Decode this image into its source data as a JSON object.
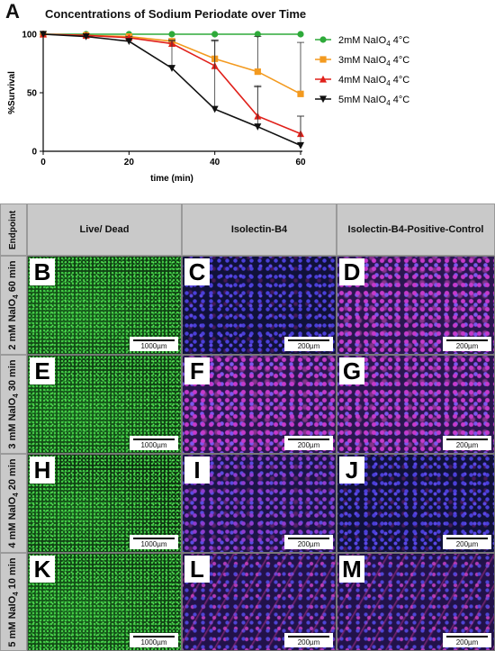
{
  "panel_a": {
    "letter": "A",
    "title": "Concentrations of Sodium Periodate over Time"
  },
  "chart_data": {
    "type": "line",
    "title": "Concentrations of Sodium Periodate over Time",
    "xlabel": "time (min)",
    "ylabel": "%Survival",
    "x": [
      0,
      10,
      20,
      30,
      40,
      50,
      60
    ],
    "xlim": [
      0,
      60
    ],
    "ylim": [
      0,
      100
    ],
    "xticks": [
      0,
      20,
      40,
      60
    ],
    "yticks": [
      0,
      50,
      100
    ],
    "grid": false,
    "legend_position": "right",
    "series": [
      {
        "name": "2mM NaIO4 4°C",
        "legend_prefix": "2mM NaIO",
        "legend_sub": "4",
        "legend_suffix": " 4°C",
        "color": "#2eaa3a",
        "marker": "circle",
        "values": [
          100,
          100,
          100,
          100,
          100,
          100,
          100
        ],
        "err_up": [
          0,
          0,
          0,
          0,
          0,
          0,
          0
        ]
      },
      {
        "name": "3mM NaIO4 4°C",
        "legend_prefix": "3mM NaIO",
        "legend_sub": "4",
        "legend_suffix": " 4°C",
        "color": "#f39a1f",
        "marker": "square",
        "values": [
          100,
          99,
          98,
          94,
          79,
          68,
          49
        ],
        "err_up": [
          0,
          0,
          1,
          2,
          16,
          30,
          44
        ]
      },
      {
        "name": "4mM NaIO4 4°C",
        "legend_prefix": "4mM NaIO",
        "legend_sub": "4",
        "legend_suffix": " 4°C",
        "color": "#e0201a",
        "marker": "triangle-up",
        "values": [
          100,
          99,
          97,
          92,
          73,
          30,
          15
        ],
        "err_up": [
          0,
          0,
          1,
          3,
          22,
          26,
          15
        ]
      },
      {
        "name": "5mM NaIO4 4°C",
        "legend_prefix": "5mM NaIO",
        "legend_sub": "4",
        "legend_suffix": " 4°C",
        "color": "#111111",
        "marker": "triangle-down",
        "values": [
          100,
          98,
          94,
          71,
          36,
          21,
          5
        ],
        "err_up": [
          0,
          0,
          2,
          23,
          58,
          34,
          25
        ]
      }
    ]
  },
  "grid": {
    "corner_label": "Endpoint",
    "col_headers": [
      "Live/ Dead",
      "Isolectin-B4",
      "Isolectin-B4-Positive-Control"
    ],
    "rows": [
      {
        "label_pre": "2 mM NaIO",
        "label_sub": "4",
        "label_post": " 60 min",
        "cells": [
          {
            "letter": "B",
            "scale": "1000µm",
            "tex": "tex-green"
          },
          {
            "letter": "C",
            "scale": "200µm",
            "tex": "tex-blue"
          },
          {
            "letter": "D",
            "scale": "200µm",
            "tex": "tex-pink"
          }
        ]
      },
      {
        "label_pre": "3 mM NaIO",
        "label_sub": "4",
        "label_post": " 30 min",
        "cells": [
          {
            "letter": "E",
            "scale": "1000µm",
            "tex": "tex-green"
          },
          {
            "letter": "F",
            "scale": "200µm",
            "tex": "tex-pink"
          },
          {
            "letter": "G",
            "scale": "200µm",
            "tex": "tex-pink"
          }
        ]
      },
      {
        "label_pre": "4 mM NaIO",
        "label_sub": "4",
        "label_post": " 20 min",
        "cells": [
          {
            "letter": "H",
            "scale": "1000µm",
            "tex": "tex-green dim"
          },
          {
            "letter": "I",
            "scale": "200µm",
            "tex": "tex-purple"
          },
          {
            "letter": "J",
            "scale": "200µm",
            "tex": "tex-blue"
          }
        ]
      },
      {
        "label_pre": "5 mM NaIO",
        "label_sub": "4",
        "label_post": " 10 min",
        "cells": [
          {
            "letter": "K",
            "scale": "1000µm",
            "tex": "tex-green"
          },
          {
            "letter": "L",
            "scale": "200µm",
            "tex": "tex-fiber"
          },
          {
            "letter": "M",
            "scale": "200µm",
            "tex": "tex-fiber"
          }
        ]
      }
    ]
  }
}
